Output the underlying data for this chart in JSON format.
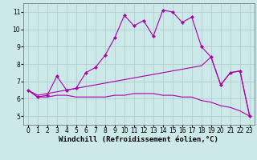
{
  "background_color": "#cce8e8",
  "line_color": "#aa00aa",
  "grid_color": "#aacccc",
  "xlim": [
    -0.5,
    23.5
  ],
  "ylim": [
    4.5,
    11.5
  ],
  "xticks": [
    0,
    1,
    2,
    3,
    4,
    5,
    6,
    7,
    8,
    9,
    10,
    11,
    12,
    13,
    14,
    15,
    16,
    17,
    18,
    19,
    20,
    21,
    22,
    23
  ],
  "yticks": [
    5,
    6,
    7,
    8,
    9,
    10,
    11
  ],
  "line1_x": [
    0,
    1,
    2,
    3,
    4,
    5,
    6,
    7,
    8,
    9,
    10,
    11,
    12,
    13,
    14,
    15,
    16,
    17,
    18,
    19,
    20,
    21,
    22,
    23
  ],
  "line1_y": [
    6.5,
    6.1,
    6.2,
    7.3,
    6.5,
    6.6,
    7.5,
    7.8,
    8.5,
    9.5,
    10.8,
    10.2,
    10.5,
    9.6,
    11.1,
    11.0,
    10.4,
    10.7,
    9.0,
    8.4,
    6.8,
    7.5,
    7.6,
    5.0
  ],
  "line2_x": [
    0,
    1,
    2,
    3,
    4,
    5,
    6,
    7,
    8,
    9,
    10,
    11,
    12,
    13,
    14,
    15,
    16,
    17,
    18,
    19,
    20,
    21,
    22,
    23
  ],
  "line2_y": [
    6.5,
    6.2,
    6.3,
    6.4,
    6.5,
    6.6,
    6.7,
    6.8,
    6.9,
    7.0,
    7.1,
    7.2,
    7.3,
    7.4,
    7.5,
    7.6,
    7.7,
    7.8,
    7.9,
    8.4,
    6.8,
    7.5,
    7.6,
    5.0
  ],
  "line3_x": [
    0,
    1,
    2,
    3,
    4,
    5,
    6,
    7,
    8,
    9,
    10,
    11,
    12,
    13,
    14,
    15,
    16,
    17,
    18,
    19,
    20,
    21,
    22,
    23
  ],
  "line3_y": [
    6.5,
    6.1,
    6.1,
    6.2,
    6.2,
    6.1,
    6.1,
    6.1,
    6.1,
    6.2,
    6.2,
    6.3,
    6.3,
    6.3,
    6.2,
    6.2,
    6.1,
    6.1,
    5.9,
    5.8,
    5.6,
    5.5,
    5.3,
    5.0
  ],
  "xlabel": "Windchill (Refroidissement éolien,°C)",
  "marker": "D",
  "markersize": 2.0,
  "linewidth": 0.8,
  "xlabel_fontsize": 6.5,
  "tick_fontsize": 5.5
}
